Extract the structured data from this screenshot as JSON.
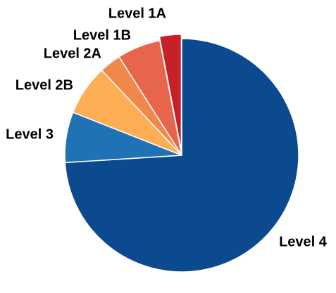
{
  "chart_data": {
    "type": "pie",
    "categories": [
      "Level 4",
      "Level 3",
      "Level 2B",
      "Level 2A",
      "Level 1B",
      "Level 1A"
    ],
    "values": [
      74,
      7,
      7,
      3,
      6,
      3
    ],
    "colors": [
      "#0b4a8f",
      "#2171b5",
      "#fdae55",
      "#f0884a",
      "#e8654d",
      "#c8202a"
    ]
  }
}
